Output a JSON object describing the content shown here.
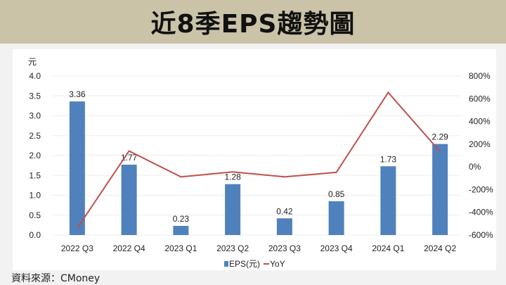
{
  "header": {
    "title": "近8季EPS趨勢圖"
  },
  "source": "資料來源：CMoney",
  "chart_data": {
    "type": "bar+line",
    "title": "近8季EPS趨勢圖",
    "categories": [
      "2022 Q3",
      "2022 Q4",
      "2023 Q1",
      "2023 Q2",
      "2023 Q3",
      "2023 Q4",
      "2024 Q1",
      "2024 Q2"
    ],
    "series": [
      {
        "name": "EPS(元)",
        "type": "bar",
        "axis": "left",
        "color": "#4f81bd",
        "values": [
          3.36,
          1.77,
          0.23,
          1.28,
          0.42,
          0.85,
          1.73,
          2.29
        ],
        "labels": [
          "3.36",
          "1.77",
          "0.23",
          "1.28",
          "0.42",
          "0.85",
          "1.73",
          "2.29"
        ]
      },
      {
        "name": "YoY",
        "type": "line",
        "axis": "right",
        "color": "#c0504d",
        "values": [
          -540,
          140,
          -88,
          -44,
          -88,
          -48,
          655,
          135
        ]
      }
    ],
    "ylabel": "元",
    "ylim": [
      0,
      4.0
    ],
    "yticks": [
      "0.0",
      "0.5",
      "1.0",
      "1.5",
      "2.0",
      "2.5",
      "3.0",
      "3.5",
      "4.0"
    ],
    "y2lim": [
      -600,
      800
    ],
    "y2ticks": [
      "-600%",
      "-400%",
      "-200%",
      "0%",
      "200%",
      "400%",
      "600%",
      "800%"
    ],
    "grid": true,
    "legend": "bottom-center",
    "legend_labels": [
      "EPS(元)",
      "YoY"
    ]
  }
}
